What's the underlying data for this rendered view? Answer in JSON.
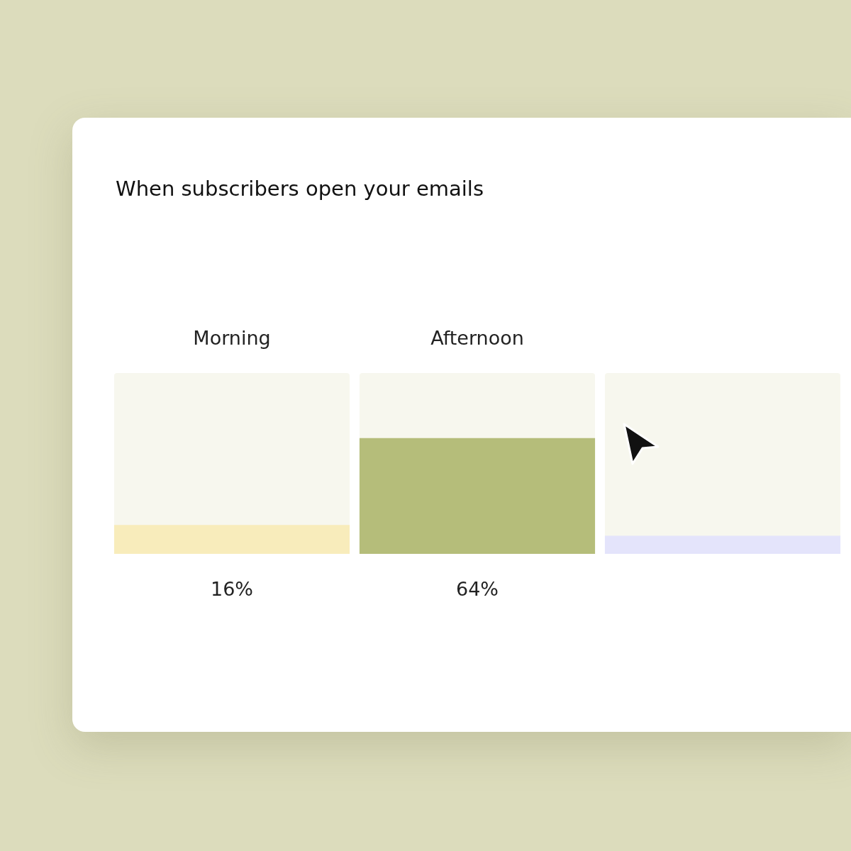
{
  "chart_data": {
    "type": "bar",
    "title": "When subscribers open your emails",
    "categories": [
      "Morning",
      "Afternoon",
      null
    ],
    "values": [
      16,
      64,
      10
    ],
    "colors": [
      "#f8ecbb",
      "#b5bd7a",
      "#e4e4fb"
    ],
    "value_labels": [
      "16%",
      "64%",
      null
    ],
    "ylim": [
      0,
      100
    ],
    "tick_labels": "x"
  }
}
